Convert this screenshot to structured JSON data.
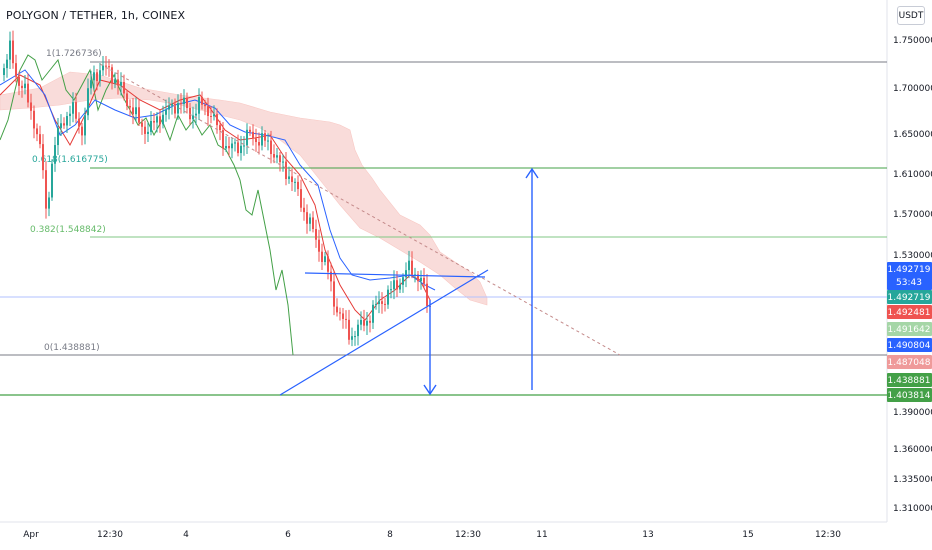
{
  "header": {
    "title": "POLYGON / TETHER, 1h, COINEX",
    "currency": "USDT"
  },
  "chart_data": {
    "type": "candlestick",
    "title": "POLYGON / TETHER, 1h, COINEX",
    "xlabel": "",
    "ylabel": "",
    "y_axis_ticks": [
      "1.750000",
      "1.700000",
      "1.650000",
      "1.610000",
      "1.570000",
      "1.530000",
      "1.390000",
      "1.360000",
      "1.335000",
      "1.310000"
    ],
    "x_axis_ticks": [
      "Apr",
      "12:30",
      "4",
      "6",
      "8",
      "12:30",
      "11",
      "13",
      "15",
      "12:30"
    ],
    "fib_levels": [
      {
        "label": "1(1.726736)",
        "value": 1.726736
      },
      {
        "label": "0.618(1.616775)",
        "value": 1.616775
      },
      {
        "label": "0.382(1.548842)",
        "value": 1.548842
      },
      {
        "label": "0(1.438881)",
        "value": 1.438881
      }
    ],
    "price_labels": [
      {
        "value": "1.492719",
        "sub": "53:43",
        "color": "#2962ff"
      },
      {
        "value": "1.492719",
        "color": "#26a69a"
      },
      {
        "value": "1.492481",
        "color": "#ef5350"
      },
      {
        "value": "1.491642",
        "color": "#a5d6a7"
      },
      {
        "value": "1.490804",
        "color": "#2962ff"
      },
      {
        "value": "1.487048",
        "color": "#ef9a9a"
      },
      {
        "value": "1.438881",
        "color": "#43a047"
      },
      {
        "value": "1.403814",
        "color": "#43a047"
      }
    ],
    "pattern": "symmetrical triangle with up/down target arrows",
    "legend": "none",
    "grid": false,
    "colors": {
      "up": "#26a69a",
      "down": "#ef5350",
      "cloud": "#f6c6c2",
      "tenkan": "#2962ff",
      "kijun": "#e53935",
      "chikou": "#43a047",
      "fib": "#43a047",
      "drawing": "#2962ff"
    }
  }
}
